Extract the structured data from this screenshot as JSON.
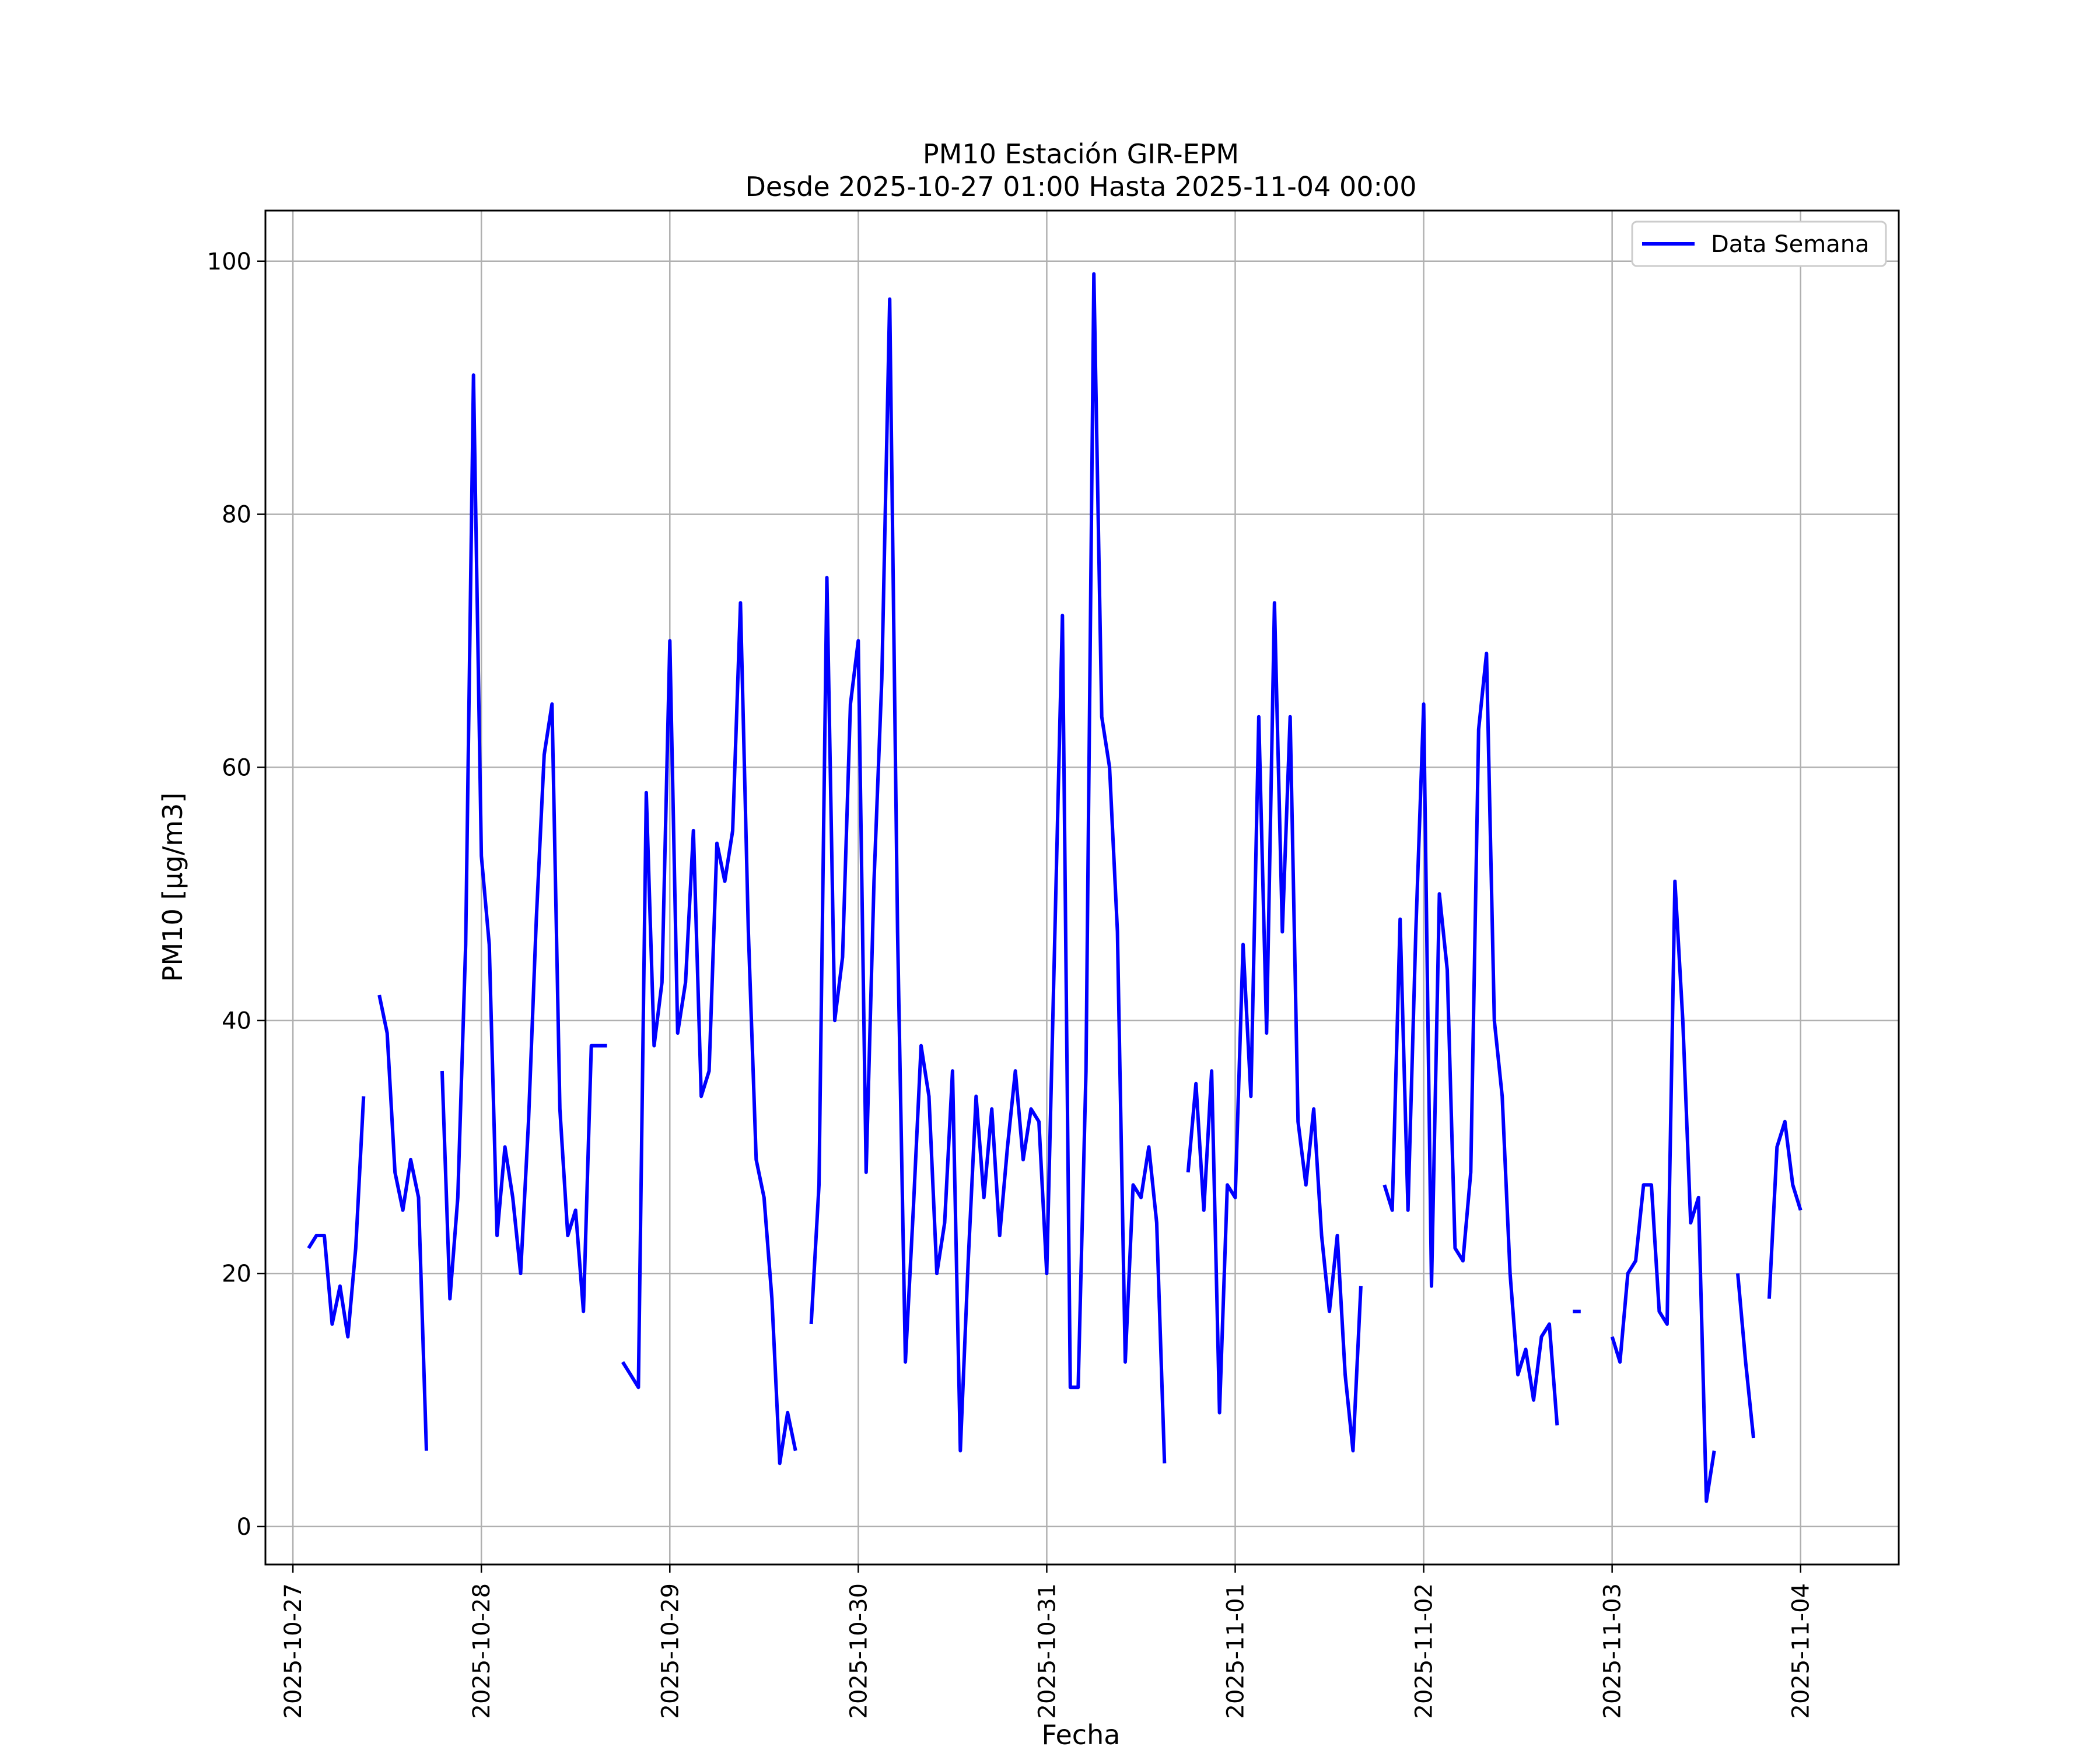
{
  "chart_data": {
    "type": "line",
    "title": "PM10 Estación GIR-EPM",
    "subtitle": "Desde 2025-10-27 01:00 Hasta 2025-11-04 00:00",
    "xlabel": "Fecha",
    "ylabel": "PM10 [μg/m3]",
    "ylim": [
      -3,
      104
    ],
    "xlim": [
      "2025-10-26 20:30",
      "2025-11-04 12:30"
    ],
    "x_ticks": [
      "2025-10-27",
      "2025-10-28",
      "2025-10-29",
      "2025-10-30",
      "2025-10-31",
      "2025-11-01",
      "2025-11-02",
      "2025-11-03",
      "2025-11-04"
    ],
    "y_ticks": [
      "0",
      "20",
      "40",
      "60",
      "80",
      "100"
    ],
    "grid": true,
    "legend_position": "top-right",
    "series": [
      {
        "name": "Data Semana",
        "color": "#0000ff",
        "points": [
          [
            "2025-10-27 02:00",
            22
          ],
          [
            "2025-10-27 03:00",
            23
          ],
          [
            "2025-10-27 04:00",
            23
          ],
          [
            "2025-10-27 05:00",
            16
          ],
          [
            "2025-10-27 06:00",
            19
          ],
          [
            "2025-10-27 07:00",
            15
          ],
          [
            "2025-10-27 08:00",
            22
          ],
          [
            "2025-10-27 09:00",
            34
          ],
          [
            "2025-10-27 10:00",
            null
          ],
          [
            "2025-10-27 11:00",
            42
          ],
          [
            "2025-10-27 12:00",
            39
          ],
          [
            "2025-10-27 13:00",
            28
          ],
          [
            "2025-10-27 14:00",
            25
          ],
          [
            "2025-10-27 15:00",
            29
          ],
          [
            "2025-10-27 16:00",
            26
          ],
          [
            "2025-10-27 17:00",
            6
          ],
          [
            "2025-10-27 18:00",
            null
          ],
          [
            "2025-10-27 19:00",
            36
          ],
          [
            "2025-10-27 20:00",
            18
          ],
          [
            "2025-10-27 21:00",
            26
          ],
          [
            "2025-10-27 22:00",
            46
          ],
          [
            "2025-10-27 23:00",
            91
          ],
          [
            "2025-10-28 00:00",
            53
          ],
          [
            "2025-10-28 01:00",
            46
          ],
          [
            "2025-10-28 02:00",
            23
          ],
          [
            "2025-10-28 03:00",
            30
          ],
          [
            "2025-10-28 04:00",
            26
          ],
          [
            "2025-10-28 05:00",
            20
          ],
          [
            "2025-10-28 06:00",
            32
          ],
          [
            "2025-10-28 07:00",
            48
          ],
          [
            "2025-10-28 08:00",
            61
          ],
          [
            "2025-10-28 09:00",
            65
          ],
          [
            "2025-10-28 10:00",
            33
          ],
          [
            "2025-10-28 11:00",
            23
          ],
          [
            "2025-10-28 12:00",
            25
          ],
          [
            "2025-10-28 13:00",
            17
          ],
          [
            "2025-10-28 14:00",
            38
          ],
          [
            "2025-10-28 15:00",
            38
          ],
          [
            "2025-10-28 16:00",
            38
          ],
          [
            "2025-10-28 17:00",
            null
          ],
          [
            "2025-10-28 18:00",
            13
          ],
          [
            "2025-10-28 19:00",
            12
          ],
          [
            "2025-10-28 20:00",
            11
          ],
          [
            "2025-10-28 21:00",
            58
          ],
          [
            "2025-10-28 22:00",
            38
          ],
          [
            "2025-10-28 23:00",
            43
          ],
          [
            "2025-10-29 00:00",
            70
          ],
          [
            "2025-10-29 01:00",
            39
          ],
          [
            "2025-10-29 02:00",
            43
          ],
          [
            "2025-10-29 03:00",
            55
          ],
          [
            "2025-10-29 04:00",
            34
          ],
          [
            "2025-10-29 05:00",
            36
          ],
          [
            "2025-10-29 06:00",
            54
          ],
          [
            "2025-10-29 07:00",
            51
          ],
          [
            "2025-10-29 08:00",
            55
          ],
          [
            "2025-10-29 09:00",
            73
          ],
          [
            "2025-10-29 10:00",
            47
          ],
          [
            "2025-10-29 11:00",
            29
          ],
          [
            "2025-10-29 12:00",
            26
          ],
          [
            "2025-10-29 13:00",
            18
          ],
          [
            "2025-10-29 14:00",
            5
          ],
          [
            "2025-10-29 15:00",
            9
          ],
          [
            "2025-10-29 16:00",
            6
          ],
          [
            "2025-10-29 17:00",
            null
          ],
          [
            "2025-10-29 18:00",
            16
          ],
          [
            "2025-10-29 19:00",
            27
          ],
          [
            "2025-10-29 20:00",
            75
          ],
          [
            "2025-10-29 21:00",
            40
          ],
          [
            "2025-10-29 22:00",
            45
          ],
          [
            "2025-10-29 23:00",
            65
          ],
          [
            "2025-10-30 00:00",
            70
          ],
          [
            "2025-10-30 01:00",
            28
          ],
          [
            "2025-10-30 02:00",
            51
          ],
          [
            "2025-10-30 03:00",
            67
          ],
          [
            "2025-10-30 04:00",
            97
          ],
          [
            "2025-10-30 05:00",
            47
          ],
          [
            "2025-10-30 06:00",
            13
          ],
          [
            "2025-10-30 07:00",
            25
          ],
          [
            "2025-10-30 08:00",
            38
          ],
          [
            "2025-10-30 09:00",
            34
          ],
          [
            "2025-10-30 10:00",
            20
          ],
          [
            "2025-10-30 11:00",
            24
          ],
          [
            "2025-10-30 12:00",
            36
          ],
          [
            "2025-10-30 13:00",
            6
          ],
          [
            "2025-10-30 14:00",
            21
          ],
          [
            "2025-10-30 15:00",
            34
          ],
          [
            "2025-10-30 16:00",
            26
          ],
          [
            "2025-10-30 17:00",
            33
          ],
          [
            "2025-10-30 18:00",
            23
          ],
          [
            "2025-10-30 19:00",
            30
          ],
          [
            "2025-10-30 20:00",
            36
          ],
          [
            "2025-10-30 21:00",
            29
          ],
          [
            "2025-10-30 22:00",
            33
          ],
          [
            "2025-10-30 23:00",
            32
          ],
          [
            "2025-10-31 00:00",
            20
          ],
          [
            "2025-10-31 01:00",
            46
          ],
          [
            "2025-10-31 02:00",
            72
          ],
          [
            "2025-10-31 03:00",
            11
          ],
          [
            "2025-10-31 04:00",
            11
          ],
          [
            "2025-10-31 05:00",
            36
          ],
          [
            "2025-10-31 06:00",
            99
          ],
          [
            "2025-10-31 07:00",
            64
          ],
          [
            "2025-10-31 08:00",
            60
          ],
          [
            "2025-10-31 09:00",
            47
          ],
          [
            "2025-10-31 10:00",
            13
          ],
          [
            "2025-10-31 11:00",
            27
          ],
          [
            "2025-10-31 12:00",
            26
          ],
          [
            "2025-10-31 13:00",
            30
          ],
          [
            "2025-10-31 14:00",
            24
          ],
          [
            "2025-10-31 15:00",
            5
          ],
          [
            "2025-10-31 16:00",
            null
          ],
          [
            "2025-10-31 18:00",
            28
          ],
          [
            "2025-10-31 19:00",
            35
          ],
          [
            "2025-10-31 20:00",
            25
          ],
          [
            "2025-10-31 21:00",
            36
          ],
          [
            "2025-10-31 22:00",
            9
          ],
          [
            "2025-10-31 23:00",
            27
          ],
          [
            "2025-11-01 00:00",
            26
          ],
          [
            "2025-11-01 01:00",
            46
          ],
          [
            "2025-11-01 02:00",
            34
          ],
          [
            "2025-11-01 03:00",
            64
          ],
          [
            "2025-11-01 04:00",
            39
          ],
          [
            "2025-11-01 05:00",
            73
          ],
          [
            "2025-11-01 06:00",
            47
          ],
          [
            "2025-11-01 07:00",
            64
          ],
          [
            "2025-11-01 08:00",
            32
          ],
          [
            "2025-11-01 09:00",
            27
          ],
          [
            "2025-11-01 10:00",
            33
          ],
          [
            "2025-11-01 11:00",
            23
          ],
          [
            "2025-11-01 12:00",
            17
          ],
          [
            "2025-11-01 13:00",
            23
          ],
          [
            "2025-11-01 14:00",
            12
          ],
          [
            "2025-11-01 15:00",
            6
          ],
          [
            "2025-11-01 16:00",
            19
          ],
          [
            "2025-11-01 17:00",
            null
          ],
          [
            "2025-11-01 19:00",
            27
          ],
          [
            "2025-11-01 20:00",
            25
          ],
          [
            "2025-11-01 21:00",
            48
          ],
          [
            "2025-11-01 22:00",
            25
          ],
          [
            "2025-11-01 23:00",
            47
          ],
          [
            "2025-11-02 00:00",
            65
          ],
          [
            "2025-11-02 01:00",
            19
          ],
          [
            "2025-11-02 02:00",
            50
          ],
          [
            "2025-11-02 03:00",
            44
          ],
          [
            "2025-11-02 04:00",
            22
          ],
          [
            "2025-11-02 05:00",
            21
          ],
          [
            "2025-11-02 06:00",
            28
          ],
          [
            "2025-11-02 07:00",
            63
          ],
          [
            "2025-11-02 08:00",
            69
          ],
          [
            "2025-11-02 09:00",
            40
          ],
          [
            "2025-11-02 10:00",
            34
          ],
          [
            "2025-11-02 11:00",
            20
          ],
          [
            "2025-11-02 12:00",
            12
          ],
          [
            "2025-11-02 13:00",
            14
          ],
          [
            "2025-11-02 14:00",
            10
          ],
          [
            "2025-11-02 15:00",
            15
          ],
          [
            "2025-11-02 16:00",
            16
          ],
          [
            "2025-11-02 17:00",
            8
          ],
          [
            "2025-11-02 18:00",
            null
          ],
          [
            "2025-11-02 19:00",
            17
          ],
          [
            "2025-11-02 20:00",
            17
          ],
          [
            "2025-11-02 21:00",
            null
          ],
          [
            "2025-11-03 00:00",
            15
          ],
          [
            "2025-11-03 01:00",
            13
          ],
          [
            "2025-11-03 02:00",
            20
          ],
          [
            "2025-11-03 03:00",
            21
          ],
          [
            "2025-11-03 04:00",
            27
          ],
          [
            "2025-11-03 05:00",
            27
          ],
          [
            "2025-11-03 06:00",
            17
          ],
          [
            "2025-11-03 07:00",
            16
          ],
          [
            "2025-11-03 08:00",
            51
          ],
          [
            "2025-11-03 09:00",
            40
          ],
          [
            "2025-11-03 10:00",
            24
          ],
          [
            "2025-11-03 11:00",
            26
          ],
          [
            "2025-11-03 12:00",
            2
          ],
          [
            "2025-11-03 13:00",
            6
          ],
          [
            "2025-11-03 14:00",
            null
          ],
          [
            "2025-11-03 16:00",
            20
          ],
          [
            "2025-11-03 17:00",
            13
          ],
          [
            "2025-11-03 18:00",
            7
          ],
          [
            "2025-11-03 19:00",
            null
          ],
          [
            "2025-11-03 20:00",
            18
          ],
          [
            "2025-11-03 21:00",
            30
          ],
          [
            "2025-11-03 22:00",
            32
          ],
          [
            "2025-11-03 23:00",
            27
          ],
          [
            "2025-11-04 00:00",
            25
          ]
        ]
      }
    ]
  }
}
